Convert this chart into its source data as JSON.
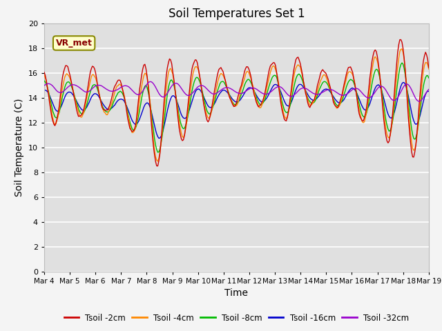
{
  "title": "Soil Temperatures Set 1",
  "xlabel": "Time",
  "ylabel": "Soil Temperature (C)",
  "ylim": [
    0,
    20
  ],
  "yticks": [
    0,
    2,
    4,
    6,
    8,
    10,
    12,
    14,
    16,
    18,
    20
  ],
  "xtick_labels": [
    "Mar 4",
    "Mar 5",
    "Mar 6",
    "Mar 7",
    "Mar 8",
    "Mar 9",
    "Mar 10",
    "Mar 11",
    "Mar 12",
    "Mar 13",
    "Mar 14",
    "Mar 15",
    "Mar 16",
    "Mar 17",
    "Mar 18",
    "Mar 19"
  ],
  "annotation_text": "VR_met",
  "series_colors": [
    "#cc0000",
    "#ff8800",
    "#00bb00",
    "#0000cc",
    "#9900cc"
  ],
  "series_labels": [
    "Tsoil -2cm",
    "Tsoil -4cm",
    "Tsoil -8cm",
    "Tsoil -16cm",
    "Tsoil -32cm"
  ],
  "background_color": "#e0e0e0",
  "grid_color": "#ffffff",
  "fig_width": 6.4,
  "fig_height": 4.8,
  "dpi": 100
}
